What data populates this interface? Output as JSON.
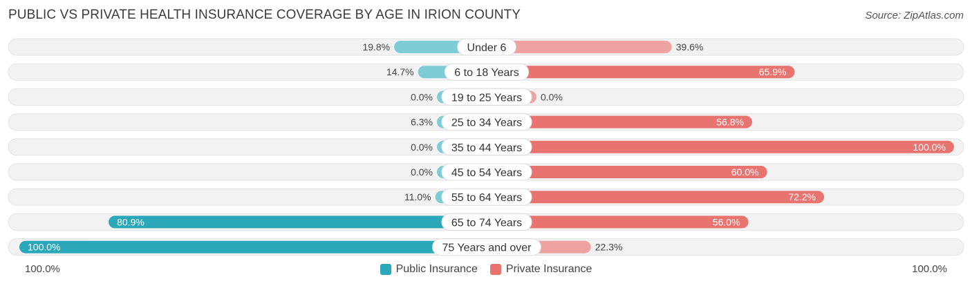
{
  "title": "PUBLIC VS PRIVATE HEALTH INSURANCE COVERAGE BY AGE IN IRION COUNTY",
  "source": "Source: ZipAtlas.com",
  "colors": {
    "public": "#2aa7b8",
    "public_light": "#7ecdd6",
    "private": "#e8736f",
    "private_light": "#efa3a0",
    "row_bg": "#f2f2f2"
  },
  "chart_data": {
    "type": "bar",
    "orientation": "horizontal-diverging",
    "categories": [
      "Under 6",
      "6 to 18 Years",
      "19 to 25 Years",
      "25 to 34 Years",
      "35 to 44 Years",
      "45 to 54 Years",
      "55 to 64 Years",
      "65 to 74 Years",
      "75 Years and over"
    ],
    "series": [
      {
        "name": "Public Insurance",
        "values": [
          19.8,
          14.7,
          0.0,
          6.3,
          0.0,
          0.0,
          11.0,
          80.9,
          100.0
        ],
        "labels": [
          "19.8%",
          "14.7%",
          "0.0%",
          "6.3%",
          "0.0%",
          "0.0%",
          "11.0%",
          "80.9%",
          "100.0%"
        ]
      },
      {
        "name": "Private Insurance",
        "values": [
          39.6,
          65.9,
          0.0,
          56.8,
          100.0,
          60.0,
          72.2,
          56.0,
          22.3
        ],
        "labels": [
          "39.6%",
          "65.9%",
          "0.0%",
          "56.8%",
          "100.0%",
          "60.0%",
          "72.2%",
          "56.0%",
          "22.3%"
        ]
      }
    ],
    "xlim": [
      -100,
      100
    ],
    "axis_left_label": "100.0%",
    "axis_right_label": "100.0%",
    "legend_position": "bottom-center"
  }
}
